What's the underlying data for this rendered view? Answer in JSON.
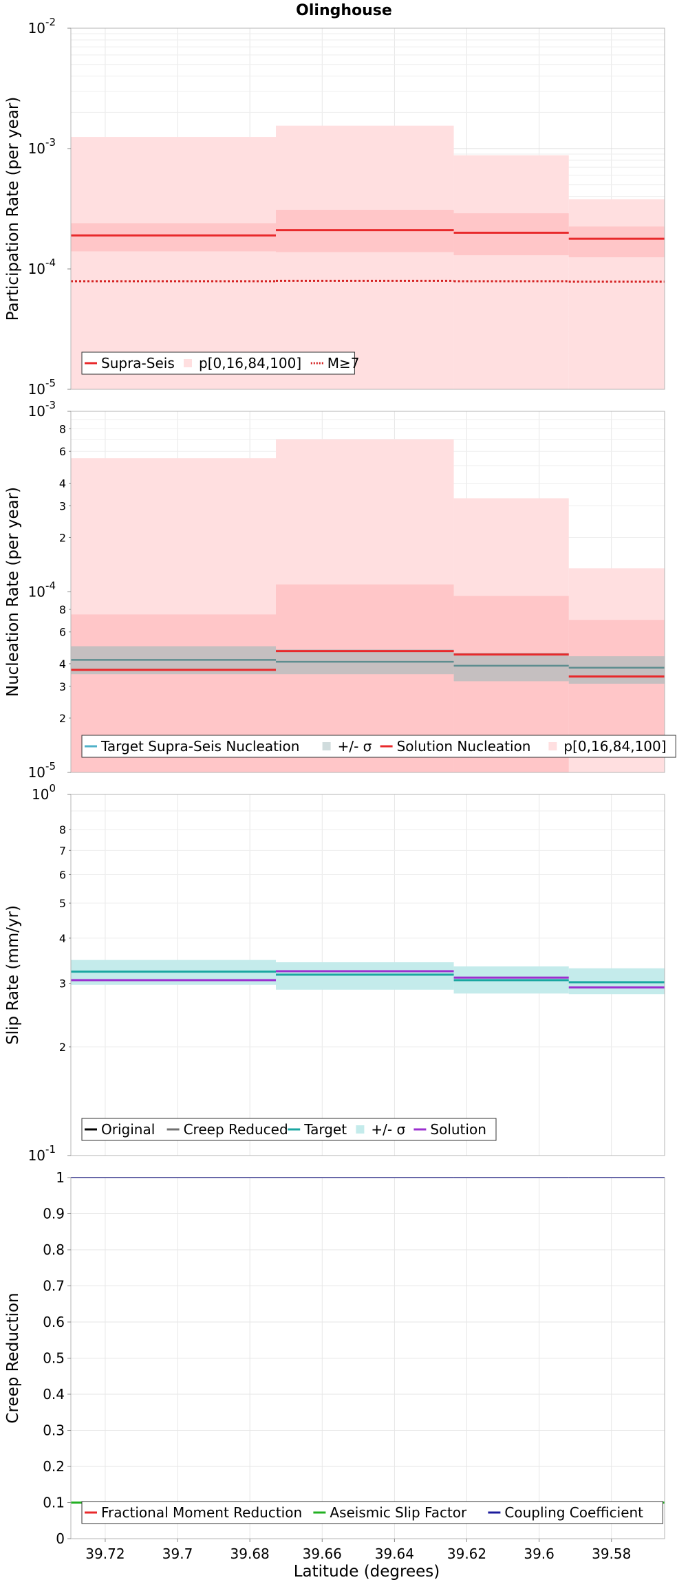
{
  "chart_data": {
    "title": "Olinghouse",
    "x_label": "Latitude (degrees)",
    "x_axis": {
      "range": [
        39.7295,
        39.5653
      ],
      "reversed": true,
      "ticks": [
        39.72,
        39.7,
        39.68,
        39.66,
        39.64,
        39.62,
        39.6,
        39.58
      ],
      "tick_labels": [
        "39.72",
        "39.7",
        "39.68",
        "39.66",
        "39.64",
        "39.62",
        "39.6",
        "39.58"
      ]
    },
    "section_edges": [
      39.7295,
      39.6728,
      39.6236,
      39.5918,
      39.5653
    ],
    "grid": true,
    "panels": [
      {
        "id": "participation",
        "type": "line",
        "y_label": "Participation Rate (per year)",
        "y_scale": "log",
        "y_range": [
          1e-05,
          0.01
        ],
        "y_ticks": [
          {
            "value": 1e-05,
            "base": "10",
            "exp": "-5"
          },
          {
            "value": 0.0001,
            "base": "10",
            "exp": "-4"
          },
          {
            "value": 0.001,
            "base": "10",
            "exp": "-3"
          },
          {
            "value": 0.01,
            "base": "10",
            "exp": "-2"
          }
        ],
        "bands": [
          {
            "name": "p[0,16,84,100] outer",
            "color": "#ffdfe0",
            "lows": [
              1e-05,
              1e-05,
              1e-05,
              1e-05
            ],
            "highs": [
              0.00125,
              0.00155,
              0.00088,
              0.00038
            ]
          },
          {
            "name": "p[0,16,84,100] inner",
            "color": "#ffc6c8",
            "lows": [
              0.00014,
              0.000138,
              0.00013,
              0.000125
            ],
            "highs": [
              0.00024,
              0.00031,
              0.00029,
              0.000225
            ]
          }
        ],
        "series": [
          {
            "name": "Supra-Seis",
            "color": "#e8292b",
            "width": 3,
            "dash": "",
            "values": [
              0.00019,
              0.00021,
              0.0002,
              0.000178
            ]
          },
          {
            "name": "M≥7",
            "color": "#d42222",
            "width": 3,
            "dash": "3,3",
            "values": [
              7.9e-05,
              7.95e-05,
              7.9e-05,
              7.85e-05
            ]
          }
        ],
        "legend": {
          "position": "bottom-left",
          "items": [
            {
              "label": "Supra-Seis",
              "kind": "line",
              "color": "#e8292b"
            },
            {
              "label": "p[0,16,84,100]",
              "kind": "box",
              "color": "#ffdfe0"
            },
            {
              "label": "M≥7",
              "kind": "dotted",
              "color": "#d42222"
            }
          ]
        }
      },
      {
        "id": "nucleation",
        "type": "line",
        "y_label": "Nucleation Rate (per year)",
        "y_scale": "log",
        "y_range": [
          1e-05,
          0.001
        ],
        "y_ticks": [
          {
            "value": 1e-05,
            "base": "10",
            "exp": "-5"
          },
          {
            "value": 0.0001,
            "base": "10",
            "exp": "-4"
          },
          {
            "value": 0.001,
            "base": "10",
            "exp": "-3"
          }
        ],
        "y_minor_ticks": [
          {
            "value": 2e-05,
            "label": "2"
          },
          {
            "value": 3e-05,
            "label": "3"
          },
          {
            "value": 4e-05,
            "label": "4"
          },
          {
            "value": 6e-05,
            "label": "6"
          },
          {
            "value": 8e-05,
            "label": "8"
          },
          {
            "value": 0.0002,
            "label": "2"
          },
          {
            "value": 0.0003,
            "label": "3"
          },
          {
            "value": 0.0004,
            "label": "4"
          },
          {
            "value": 0.0006,
            "label": "6"
          },
          {
            "value": 0.0008,
            "label": "8"
          }
        ],
        "bands": [
          {
            "name": "p[0,16,84,100] outer",
            "color": "#ffdfe0",
            "lows": [
              1e-05,
              1e-05,
              1e-05,
              1e-05
            ],
            "highs": [
              0.00055,
              0.0007,
              0.00033,
              0.000135
            ]
          },
          {
            "name": "p[0,16,84,100] inner",
            "color": "#ffc6c8",
            "lows": [
              1e-05,
              1e-05,
              1e-05,
              1.35e-05
            ],
            "highs": [
              7.5e-05,
              0.00011,
              9.5e-05,
              7e-05
            ]
          },
          {
            "name": "+/- σ",
            "color": "#c5bfc0",
            "lows": [
              3.5e-05,
              3.5e-05,
              3.2e-05,
              3.1e-05
            ],
            "highs": [
              5e-05,
              4.8e-05,
              4.6e-05,
              4.4e-05
            ]
          }
        ],
        "series": [
          {
            "name": "Target Supra-Seis Nucleation",
            "color": "#5d8d8f",
            "width": 2.5,
            "dash": "",
            "values": [
              4.2e-05,
              4.1e-05,
              3.9e-05,
              3.8e-05
            ]
          },
          {
            "name": "Solution Nucleation",
            "color": "#e8292b",
            "width": 3,
            "dash": "",
            "values": [
              3.7e-05,
              4.7e-05,
              4.5e-05,
              3.4e-05
            ]
          }
        ],
        "legend": {
          "position": "bottom-left",
          "items": [
            {
              "label": "Target Supra-Seis Nucleation",
              "kind": "line",
              "color": "#4fb1c8"
            },
            {
              "label": "+/- σ",
              "kind": "box",
              "color": "#d0dcdd"
            },
            {
              "label": "Solution Nucleation",
              "kind": "line",
              "color": "#e8292b"
            },
            {
              "label": "p[0,16,84,100]",
              "kind": "box",
              "color": "#ffdfe0"
            }
          ]
        }
      },
      {
        "id": "slip",
        "type": "line",
        "y_label": "Slip Rate (mm/yr)",
        "y_scale": "log",
        "y_range": [
          0.1,
          1
        ],
        "y_ticks": [
          {
            "value": 0.1,
            "base": "10",
            "exp": "-1"
          },
          {
            "value": 1,
            "base": "10",
            "exp": "0"
          }
        ],
        "y_minor_ticks": [
          {
            "value": 0.2,
            "label": "2"
          },
          {
            "value": 0.3,
            "label": "3"
          },
          {
            "value": 0.4,
            "label": "4"
          },
          {
            "value": 0.5,
            "label": "5"
          },
          {
            "value": 0.6,
            "label": "6"
          },
          {
            "value": 0.7,
            "label": "7"
          },
          {
            "value": 0.8,
            "label": "8"
          }
        ],
        "bands": [
          {
            "name": "+/- σ",
            "color": "#c4ebeb",
            "lows": [
              0.297,
              0.288,
              0.281,
              0.28
            ],
            "highs": [
              0.348,
              0.343,
              0.334,
              0.33
            ]
          }
        ],
        "series": [
          {
            "name": "Target",
            "color": "#1aa6a0",
            "width": 3,
            "dash": "",
            "values": [
              0.323,
              0.317,
              0.306,
              0.302
            ]
          },
          {
            "name": "Solution",
            "color": "#9b2fcf",
            "width": 3,
            "dash": "",
            "values": [
              0.306,
              0.324,
              0.311,
              0.292
            ]
          }
        ],
        "legend": {
          "position": "bottom-left",
          "items": [
            {
              "label": "Original",
              "kind": "line",
              "color": "#000000"
            },
            {
              "label": "Creep Reduced",
              "kind": "line",
              "color": "#707070"
            },
            {
              "label": "Target",
              "kind": "line",
              "color": "#1aa6a0"
            },
            {
              "label": "+/- σ",
              "kind": "box",
              "color": "#c4ebeb"
            },
            {
              "label": "Solution",
              "kind": "line",
              "color": "#9b2fcf"
            }
          ]
        }
      },
      {
        "id": "creep",
        "type": "line",
        "y_label": "Creep Reduction",
        "y_scale": "linear",
        "y_range": [
          0,
          1
        ],
        "y_ticks": [
          {
            "value": 0,
            "label": "0"
          },
          {
            "value": 0.1,
            "label": "0.1"
          },
          {
            "value": 0.2,
            "label": "0.2"
          },
          {
            "value": 0.3,
            "label": "0.3"
          },
          {
            "value": 0.4,
            "label": "0.4"
          },
          {
            "value": 0.5,
            "label": "0.5"
          },
          {
            "value": 0.6,
            "label": "0.6"
          },
          {
            "value": 0.7,
            "label": "0.7"
          },
          {
            "value": 0.8,
            "label": "0.8"
          },
          {
            "value": 0.9,
            "label": "0.9"
          },
          {
            "value": 1,
            "label": "1"
          }
        ],
        "bands": [],
        "series": [
          {
            "name": "Aseismic Slip Factor",
            "color": "#22b022",
            "width": 3,
            "dash": "",
            "values": [
              0.1,
              0.1,
              0.1,
              0.1
            ]
          },
          {
            "name": "Coupling Coefficient",
            "color": "#1c1c9c",
            "width": 2,
            "dash": "",
            "values": [
              1,
              1,
              1,
              1
            ]
          }
        ],
        "legend": {
          "position": "bottom-left",
          "items": [
            {
              "label": "Fractional Moment Reduction",
              "kind": "line",
              "color": "#e8292b"
            },
            {
              "label": "Aseismic Slip Factor",
              "kind": "line",
              "color": "#22b022"
            },
            {
              "label": "Coupling Coefficient",
              "kind": "line",
              "color": "#1c1c9c"
            }
          ]
        }
      }
    ]
  }
}
